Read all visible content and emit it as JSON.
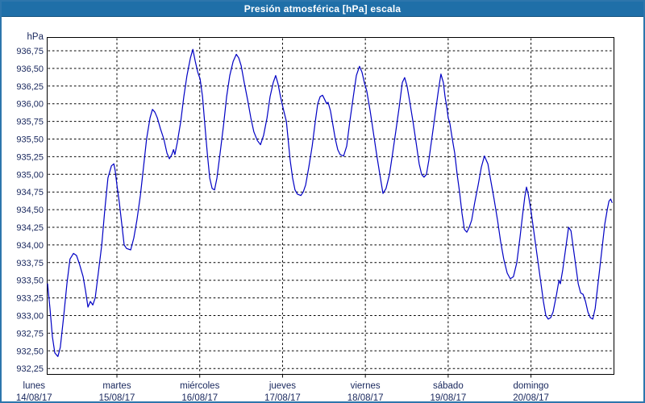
{
  "window": {
    "title": "Presión atmosférica [hPa] escala",
    "title_bg": "#1f6fa8",
    "border_color": "#2d76ac"
  },
  "chart_data": {
    "type": "line",
    "title": "Presión atmosférica [hPa] escala",
    "unit_label": "hPa",
    "ylabel": "hPa",
    "xlabel": "",
    "legend": [],
    "grid": "dashed",
    "ylim": [
      932.25,
      936.75
    ],
    "ytick_step": 0.25,
    "yticks": [
      {
        "value": 936.75,
        "label": "936,75"
      },
      {
        "value": 936.5,
        "label": "936,50"
      },
      {
        "value": 936.25,
        "label": "936,25"
      },
      {
        "value": 936.0,
        "label": "936,00"
      },
      {
        "value": 935.75,
        "label": "935,75"
      },
      {
        "value": 935.5,
        "label": "935,50"
      },
      {
        "value": 935.25,
        "label": "935,25"
      },
      {
        "value": 935.0,
        "label": "935,00"
      },
      {
        "value": 934.75,
        "label": "934,75"
      },
      {
        "value": 934.5,
        "label": "934,50"
      },
      {
        "value": 934.25,
        "label": "934,25"
      },
      {
        "value": 934.0,
        "label": "934,00"
      },
      {
        "value": 933.75,
        "label": "933,75"
      },
      {
        "value": 933.5,
        "label": "933,50"
      },
      {
        "value": 933.25,
        "label": "933,25"
      },
      {
        "value": 933.0,
        "label": "933,00"
      },
      {
        "value": 932.75,
        "label": "932,75"
      },
      {
        "value": 932.5,
        "label": "932,50"
      },
      {
        "value": 932.25,
        "label": "932,25"
      }
    ],
    "x_days": [
      {
        "name": "lunes",
        "date": "14/08/17",
        "start_hour": 0
      },
      {
        "name": "martes",
        "date": "15/08/17",
        "start_hour": 24
      },
      {
        "name": "miércoles",
        "date": "16/08/17",
        "start_hour": 48
      },
      {
        "name": "jueves",
        "date": "17/08/17",
        "start_hour": 72
      },
      {
        "name": "viernes",
        "date": "18/08/17",
        "start_hour": 96
      },
      {
        "name": "sábado",
        "date": "19/08/17",
        "start_hour": 120
      },
      {
        "name": "domingo",
        "date": "20/08/17",
        "start_hour": 144
      }
    ],
    "x_range_hours": [
      0,
      168
    ],
    "x_visible_hours": [
      3.9,
      167.5
    ],
    "series_color": "#0000c4",
    "text_color": "#17265c",
    "series": [
      {
        "name": "Presión atmosférica [hPa]",
        "points": [
          [
            3.9,
            933.45
          ],
          [
            4.6,
            933.1
          ],
          [
            5.3,
            932.7
          ],
          [
            6,
            932.47
          ],
          [
            6.9,
            932.42
          ],
          [
            7.6,
            932.55
          ],
          [
            8.6,
            933
          ],
          [
            9.5,
            933.45
          ],
          [
            10.4,
            933.8
          ],
          [
            11.4,
            933.88
          ],
          [
            12.3,
            933.85
          ],
          [
            13.2,
            933.72
          ],
          [
            14.2,
            933.55
          ],
          [
            14.9,
            933.35
          ],
          [
            15.6,
            933.12
          ],
          [
            16.3,
            933.2
          ],
          [
            17,
            933.15
          ],
          [
            17.7,
            933.25
          ],
          [
            18.6,
            933.6
          ],
          [
            19.6,
            934
          ],
          [
            20.5,
            934.5
          ],
          [
            21.4,
            934.95
          ],
          [
            22.4,
            935.12
          ],
          [
            23.1,
            935.15
          ],
          [
            23.5,
            935.05
          ],
          [
            24,
            934.85
          ],
          [
            24.7,
            934.6
          ],
          [
            25.4,
            934.3
          ],
          [
            26.1,
            934
          ],
          [
            26.8,
            933.95
          ],
          [
            28,
            933.93
          ],
          [
            28.9,
            934.1
          ],
          [
            29.8,
            934.35
          ],
          [
            30.8,
            934.7
          ],
          [
            31.7,
            935.1
          ],
          [
            32.6,
            935.5
          ],
          [
            33.6,
            935.8
          ],
          [
            34.3,
            935.92
          ],
          [
            35,
            935.88
          ],
          [
            35.7,
            935.8
          ],
          [
            36.6,
            935.65
          ],
          [
            37.6,
            935.5
          ],
          [
            38.5,
            935.3
          ],
          [
            39.2,
            935.22
          ],
          [
            39.9,
            935.28
          ],
          [
            40.4,
            935.35
          ],
          [
            40.8,
            935.28
          ],
          [
            41.5,
            935.45
          ],
          [
            42.5,
            935.75
          ],
          [
            43.4,
            936.1
          ],
          [
            44.3,
            936.4
          ],
          [
            45.3,
            936.65
          ],
          [
            46,
            936.77
          ],
          [
            46.7,
            936.6
          ],
          [
            47.4,
            936.45
          ],
          [
            48.1,
            936.35
          ],
          [
            48.8,
            936.1
          ],
          [
            49.5,
            935.7
          ],
          [
            50.2,
            935.3
          ],
          [
            50.9,
            934.95
          ],
          [
            51.6,
            934.8
          ],
          [
            52.3,
            934.78
          ],
          [
            53,
            934.95
          ],
          [
            53.9,
            935.3
          ],
          [
            54.9,
            935.7
          ],
          [
            55.8,
            936.1
          ],
          [
            56.7,
            936.4
          ],
          [
            57.7,
            936.6
          ],
          [
            58.6,
            936.7
          ],
          [
            59.3,
            936.65
          ],
          [
            60,
            936.54
          ],
          [
            60.9,
            936.3
          ],
          [
            61.9,
            936.05
          ],
          [
            62.8,
            935.8
          ],
          [
            63.7,
            935.6
          ],
          [
            64.7,
            935.48
          ],
          [
            65.6,
            935.42
          ],
          [
            66.5,
            935.55
          ],
          [
            67.5,
            935.8
          ],
          [
            68.4,
            936.1
          ],
          [
            69.3,
            936.3
          ],
          [
            70,
            936.4
          ],
          [
            70.7,
            936.28
          ],
          [
            71.4,
            936.1
          ],
          [
            72.1,
            935.95
          ],
          [
            72.6,
            935.85
          ],
          [
            73.1,
            935.75
          ],
          [
            73.5,
            935.55
          ],
          [
            74.2,
            935.2
          ],
          [
            74.9,
            934.95
          ],
          [
            75.6,
            934.78
          ],
          [
            76.3,
            934.72
          ],
          [
            77.3,
            934.7
          ],
          [
            78,
            934.75
          ],
          [
            78.7,
            934.85
          ],
          [
            79.6,
            935.1
          ],
          [
            80.6,
            935.4
          ],
          [
            81.5,
            935.75
          ],
          [
            82.2,
            936
          ],
          [
            82.9,
            936.1
          ],
          [
            83.6,
            936.12
          ],
          [
            84.3,
            936.05
          ],
          [
            84.8,
            936
          ],
          [
            85.2,
            936.02
          ],
          [
            85.9,
            935.9
          ],
          [
            86.6,
            935.7
          ],
          [
            87.3,
            935.5
          ],
          [
            88,
            935.35
          ],
          [
            88.7,
            935.28
          ],
          [
            89.7,
            935.26
          ],
          [
            90.6,
            935.4
          ],
          [
            91.5,
            935.75
          ],
          [
            92.5,
            936.1
          ],
          [
            93.4,
            936.4
          ],
          [
            94.3,
            936.53
          ],
          [
            95,
            936.45
          ],
          [
            95.7,
            936.3
          ],
          [
            96.4,
            936.18
          ],
          [
            97.4,
            935.9
          ],
          [
            98.3,
            935.6
          ],
          [
            99.2,
            935.3
          ],
          [
            100.2,
            935
          ],
          [
            101.1,
            934.73
          ],
          [
            102,
            934.8
          ],
          [
            103,
            935
          ],
          [
            103.9,
            935.3
          ],
          [
            104.8,
            935.6
          ],
          [
            105.8,
            935.95
          ],
          [
            106.7,
            936.3
          ],
          [
            107.4,
            936.37
          ],
          [
            108.1,
            936.25
          ],
          [
            108.8,
            936.05
          ],
          [
            109.8,
            935.75
          ],
          [
            110.7,
            935.45
          ],
          [
            111.6,
            935.15
          ],
          [
            112.3,
            935
          ],
          [
            113,
            934.96
          ],
          [
            113.7,
            935
          ],
          [
            114.4,
            935.2
          ],
          [
            115.1,
            935.45
          ],
          [
            115.8,
            935.7
          ],
          [
            116.5,
            935.95
          ],
          [
            117.2,
            936.2
          ],
          [
            117.9,
            936.42
          ],
          [
            118.6,
            936.3
          ],
          [
            119.1,
            936.1
          ],
          [
            119.6,
            935.95
          ],
          [
            120,
            935.8
          ],
          [
            120.5,
            935.72
          ],
          [
            121.2,
            935.5
          ],
          [
            121.9,
            935.3
          ],
          [
            122.6,
            935
          ],
          [
            123.3,
            934.75
          ],
          [
            124,
            934.45
          ],
          [
            124.7,
            934.22
          ],
          [
            125.4,
            934.18
          ],
          [
            126.1,
            934.25
          ],
          [
            126.8,
            934.35
          ],
          [
            127.7,
            934.6
          ],
          [
            128.7,
            934.85
          ],
          [
            129.6,
            935.1
          ],
          [
            130.5,
            935.26
          ],
          [
            131.5,
            935.15
          ],
          [
            132.4,
            934.9
          ],
          [
            133.3,
            934.65
          ],
          [
            134.3,
            934.35
          ],
          [
            135.2,
            934.05
          ],
          [
            136.1,
            933.8
          ],
          [
            137.1,
            933.6
          ],
          [
            138,
            933.52
          ],
          [
            138.9,
            933.55
          ],
          [
            139.9,
            933.75
          ],
          [
            140.8,
            934.1
          ],
          [
            141.5,
            934.4
          ],
          [
            142.2,
            934.68
          ],
          [
            142.7,
            934.82
          ],
          [
            143.2,
            934.72
          ],
          [
            143.6,
            934.6
          ],
          [
            144.1,
            934.45
          ],
          [
            144.8,
            934.2
          ],
          [
            145.5,
            933.95
          ],
          [
            146.2,
            933.7
          ],
          [
            146.9,
            933.45
          ],
          [
            147.6,
            933.2
          ],
          [
            148.3,
            933
          ],
          [
            149,
            932.95
          ],
          [
            149.7,
            932.97
          ],
          [
            150.4,
            933.05
          ],
          [
            151.4,
            933.3
          ],
          [
            152.1,
            933.5
          ],
          [
            152.5,
            933.45
          ],
          [
            153.2,
            933.65
          ],
          [
            154.2,
            934
          ],
          [
            154.9,
            934.25
          ],
          [
            155.6,
            934.2
          ],
          [
            156.3,
            933.95
          ],
          [
            157,
            933.7
          ],
          [
            157.7,
            933.45
          ],
          [
            158.4,
            933.32
          ],
          [
            159.1,
            933.3
          ],
          [
            159.8,
            933.2
          ],
          [
            160.5,
            933.05
          ],
          [
            161.2,
            932.97
          ],
          [
            161.9,
            932.95
          ],
          [
            162.6,
            933.1
          ],
          [
            163.3,
            933.4
          ],
          [
            164,
            933.7
          ],
          [
            164.7,
            934
          ],
          [
            165.4,
            934.3
          ],
          [
            166.1,
            934.5
          ],
          [
            166.6,
            934.62
          ],
          [
            167.1,
            934.65
          ],
          [
            167.5,
            934.6
          ]
        ]
      }
    ]
  }
}
